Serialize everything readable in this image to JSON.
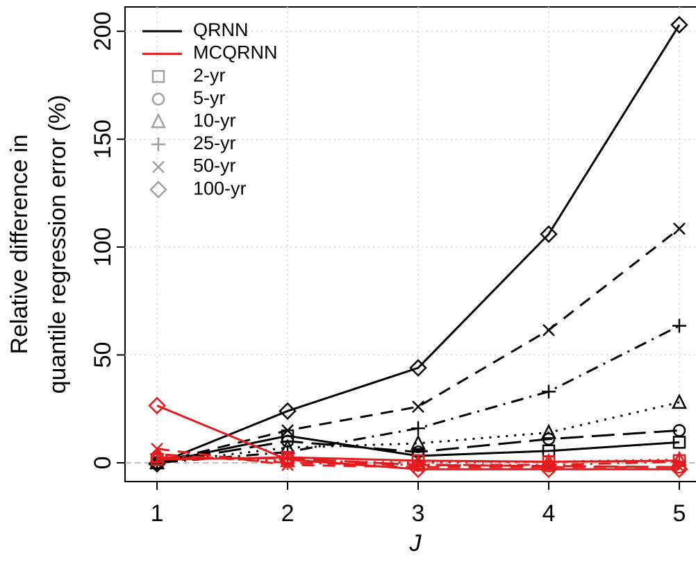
{
  "chart_data": {
    "type": "line",
    "x_label": "J",
    "y_label": [
      "Relative difference in",
      "quantile regression error (%)"
    ],
    "x": [
      1,
      2,
      3,
      4,
      5
    ],
    "xlim": [
      0.755,
      5.197
    ],
    "xticks": [
      1,
      2,
      3,
      4,
      5
    ],
    "ylim": [
      -8.7,
      211.3
    ],
    "yticks": [
      0,
      50,
      100,
      150,
      200
    ],
    "grid": true,
    "zero_line": 0,
    "legend": "top-left",
    "legend_symbol_color": "#a0a0a0",
    "quantiles": [
      {
        "name": "2-yr",
        "marker": "square",
        "linestyle": "solid"
      },
      {
        "name": "5-yr",
        "marker": "circle",
        "linestyle": "longdash"
      },
      {
        "name": "10-yr",
        "marker": "triangle",
        "linestyle": "dotted"
      },
      {
        "name": "25-yr",
        "marker": "plus",
        "linestyle": "dotdash"
      },
      {
        "name": "50-yr",
        "marker": "cross",
        "linestyle": "dashed"
      },
      {
        "name": "100-yr",
        "marker": "diamond",
        "linestyle": "solid"
      }
    ],
    "models": [
      {
        "name": "QRNN",
        "color": "#000000",
        "values": [
          [
            0,
            12.5,
            3.2,
            5.5,
            9.5
          ],
          [
            0,
            10,
            5,
            11,
            15
          ],
          [
            0,
            7,
            9,
            14,
            28
          ],
          [
            0,
            5,
            16,
            33,
            63.5
          ],
          [
            0,
            15,
            26,
            61.5,
            108.5
          ],
          [
            -0.5,
            24,
            44,
            106,
            203
          ]
        ]
      },
      {
        "name": "MCQRNN",
        "color": "#e41a1c",
        "values": [
          [
            1.5,
            2.5,
            1,
            0.5,
            1
          ],
          [
            2.5,
            2,
            -1,
            -1.5,
            -2
          ],
          [
            3,
            1,
            0,
            0.5,
            1.5
          ],
          [
            4,
            0,
            -1,
            -1,
            0.5
          ],
          [
            6.5,
            -1,
            -2,
            -2,
            -2
          ],
          [
            26.5,
            1.5,
            -3,
            -3,
            -3
          ]
        ]
      }
    ]
  }
}
